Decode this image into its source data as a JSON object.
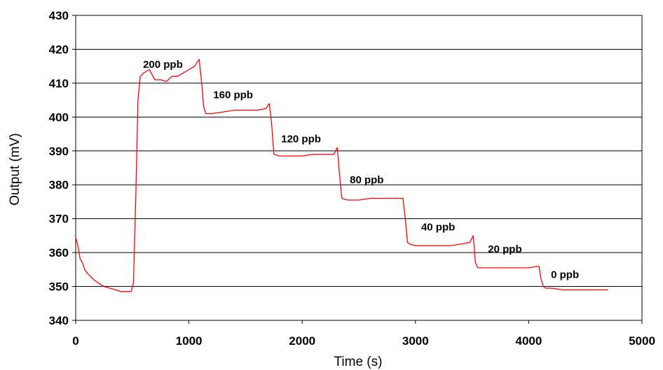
{
  "chart_data": {
    "type": "line",
    "title": "",
    "xlabel": "Time (s)",
    "ylabel": "Output (mV)",
    "xlim": [
      0,
      5000
    ],
    "ylim": [
      340,
      430
    ],
    "xticks": [
      0,
      1000,
      2000,
      3000,
      4000,
      5000
    ],
    "yticks": [
      340,
      350,
      360,
      370,
      380,
      390,
      400,
      410,
      420,
      430
    ],
    "grid": "horizontal",
    "legend": "none",
    "colors": {
      "line": "#ff0000",
      "grid": "#000000"
    },
    "series": [
      {
        "x": [
          0,
          20,
          40,
          60,
          80,
          100,
          130,
          160,
          200,
          250,
          300,
          350,
          400,
          450,
          490,
          510,
          530,
          550,
          570,
          600,
          650,
          700,
          750,
          800,
          850,
          900,
          950,
          1000,
          1050,
          1090,
          1110,
          1130,
          1150,
          1200,
          1300,
          1400,
          1500,
          1600,
          1680,
          1710,
          1730,
          1750,
          1800,
          1900,
          2000,
          2100,
          2200,
          2280,
          2310,
          2330,
          2350,
          2400,
          2500,
          2600,
          2700,
          2800,
          2890,
          2910,
          2930,
          2950,
          3000,
          3100,
          3200,
          3300,
          3400,
          3480,
          3510,
          3530,
          3550,
          3600,
          3700,
          3800,
          3900,
          4000,
          4090,
          4110,
          4130,
          4150,
          4200,
          4300,
          4400,
          4500,
          4600,
          4700
        ],
        "y": [
          364.5,
          362,
          358,
          357,
          355,
          354,
          353,
          352,
          351,
          350,
          349.5,
          349,
          348.5,
          348.5,
          348.5,
          351,
          375,
          405,
          412,
          413,
          414,
          411,
          411,
          410.5,
          412,
          412,
          413,
          414,
          415,
          417,
          411,
          403,
          401,
          401,
          401.5,
          402,
          402,
          402,
          402.5,
          404,
          398,
          389,
          388.5,
          388.5,
          388.5,
          389,
          389,
          389,
          391,
          383,
          376,
          375.5,
          375.5,
          376,
          376,
          376,
          376,
          370,
          363,
          362.5,
          362,
          362,
          362,
          362,
          362.5,
          363,
          365,
          357,
          355.5,
          355.5,
          355.5,
          355.5,
          355.5,
          355.5,
          356,
          352,
          350,
          349.5,
          349.5,
          349,
          349,
          349,
          349,
          349
        ]
      }
    ],
    "annotations": [
      {
        "text": "200 ppb",
        "x": 770,
        "y": 414.5
      },
      {
        "text": "160 ppb",
        "x": 1390,
        "y": 405.5
      },
      {
        "text": "120 ppb",
        "x": 1990,
        "y": 392.5
      },
      {
        "text": "80 ppb",
        "x": 2570,
        "y": 380.5
      },
      {
        "text": "40 ppb",
        "x": 3200,
        "y": 366.5
      },
      {
        "text": "20 ppb",
        "x": 3790,
        "y": 360
      },
      {
        "text": "0 ppb",
        "x": 4320,
        "y": 352.5
      }
    ]
  }
}
